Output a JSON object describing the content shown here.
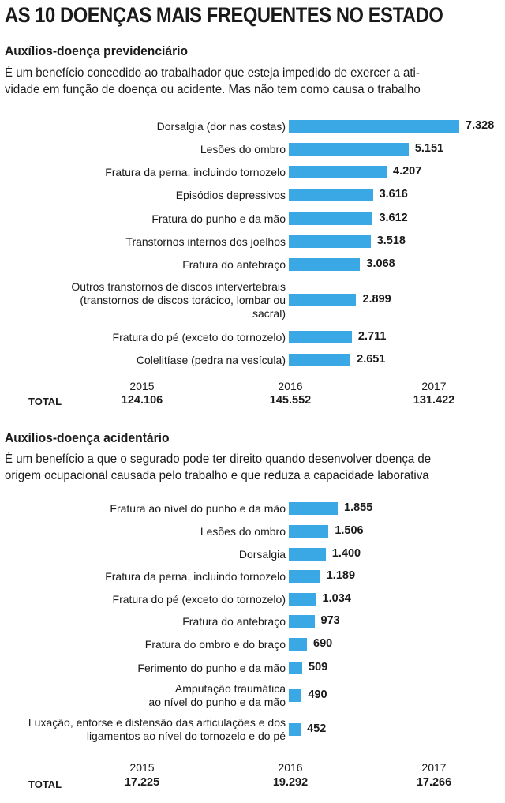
{
  "title": "AS 10 DOENÇAS MAIS FREQUENTES NO ESTADO",
  "sections": [
    {
      "title": "Auxílios-doença previdenciário",
      "description": [
        "É um benefício concedido ao trabalhador que esteja impedido de exercer a ati-",
        "vidade em função de doença ou acidente. Mas não tem como causa o trabalho"
      ],
      "totals": {
        "label": "TOTAL",
        "years": [
          "2015",
          "2016",
          "2017"
        ],
        "values": [
          "124.106",
          "145.552",
          "131.422"
        ]
      }
    },
    {
      "title": "Auxílios-doença acidentário",
      "description": [
        "É um benefício a que o segurado pode ter direito quando desenvolver doença de",
        "origem ocupacional causada pelo trabalho e que reduza a capacidade laborativa"
      ],
      "totals": {
        "label": "TOTAL",
        "years": [
          "2015",
          "2016",
          "2017"
        ],
        "values": [
          "17.225",
          "19.292",
          "17.266"
        ]
      }
    }
  ],
  "chart_data": [
    {
      "type": "bar",
      "orientation": "horizontal",
      "categories": [
        "Dorsalgia (dor nas costas)",
        "Lesões do ombro",
        "Fratura da perna, incluindo tornozelo",
        "Episódios depressivos",
        "Fratura do punho e da mão",
        "Transtornos internos dos joelhos",
        "Fratura do antebraço",
        "Outros transtornos de discos intervertebrais\n(transtornos de discos torácico, lombar ou\nsacral)",
        "Fratura do pé (exceto do tornozelo)",
        "Colelitíase (pedra na vesícula)"
      ],
      "values": [
        7328,
        5151,
        4207,
        3616,
        3612,
        3518,
        3068,
        2899,
        2711,
        2651
      ],
      "value_labels": [
        "7.328",
        "5.151",
        "4.207",
        "3.616",
        "3.612",
        "3.518",
        "3.068",
        "2.899",
        "2.711",
        "2.651"
      ]
    },
    {
      "type": "bar",
      "orientation": "horizontal",
      "categories": [
        "Fratura ao nível do punho e da mão",
        "Lesões do ombro",
        "Dorsalgia",
        "Fratura da perna, incluindo tornozelo",
        "Fratura do pé (exceto do tornozelo)",
        "Fratura do antebraço",
        "Fratura do ombro e do braço",
        "Ferimento do punho e da mão",
        "Amputação traumática\nao nível do punho e da mão",
        "Luxação, entorse e distensão das articulações e dos\nligamentos ao nível do tornozelo e do pé"
      ],
      "values": [
        1855,
        1506,
        1400,
        1189,
        1034,
        973,
        690,
        509,
        490,
        452
      ],
      "value_labels": [
        "1.855",
        "1.506",
        "1.400",
        "1.189",
        "1.034",
        "973",
        "690",
        "509",
        "490",
        "452"
      ]
    }
  ]
}
